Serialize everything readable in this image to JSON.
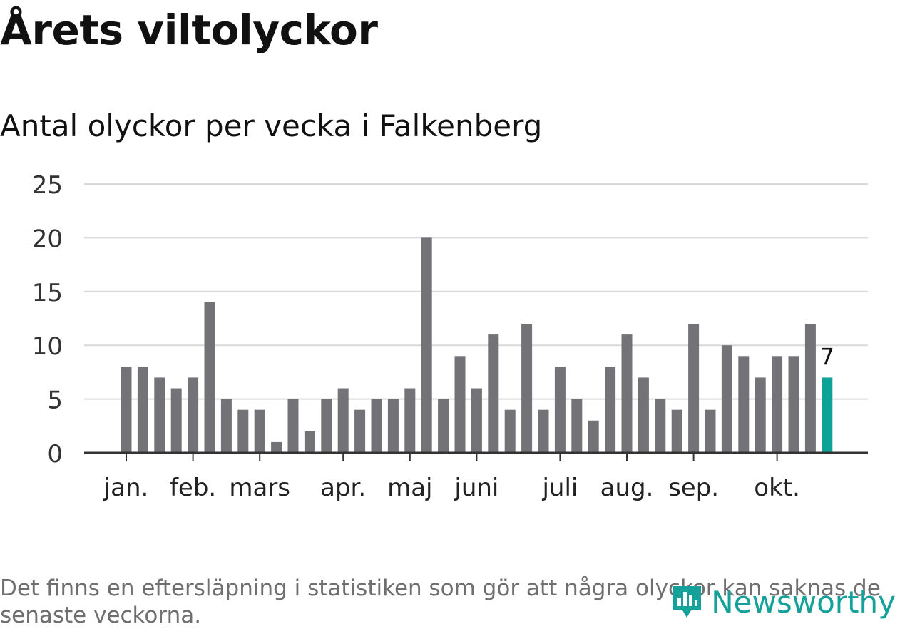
{
  "header": {
    "title": "Årets viltolyckor",
    "subtitle": "Antal olyckor per vecka i Falkenberg"
  },
  "footer": {
    "note": "Det finns en eftersläpning i statistiken som gör att några olyckor kan saknas de senaste veckorna.",
    "brand": "Newsworthy"
  },
  "colors": {
    "bar": "#737277",
    "highlight": "#0fa397",
    "grid": "#d9d9d9",
    "axis": "#333333",
    "brand": "#13a19a"
  },
  "chart_data": {
    "type": "bar",
    "title": "Antal olyckor per vecka i Falkenberg",
    "xlabel": "",
    "ylabel": "",
    "ylim": [
      0,
      25
    ],
    "yticks": [
      0,
      5,
      10,
      15,
      20,
      25
    ],
    "weeks": [
      1,
      2,
      3,
      4,
      5,
      6,
      7,
      8,
      9,
      10,
      11,
      12,
      13,
      14,
      15,
      16,
      17,
      18,
      19,
      20,
      21,
      22,
      23,
      24,
      25,
      26,
      27,
      28,
      29,
      30,
      31,
      32,
      33,
      34,
      35,
      36,
      37,
      38,
      39,
      40,
      41,
      42,
      43
    ],
    "values": [
      8,
      8,
      7,
      6,
      7,
      14,
      5,
      4,
      4,
      1,
      5,
      2,
      5,
      6,
      4,
      5,
      5,
      6,
      20,
      5,
      9,
      6,
      11,
      4,
      12,
      4,
      8,
      5,
      3,
      8,
      11,
      7,
      5,
      4,
      12,
      4,
      10,
      9,
      7,
      9,
      9,
      12,
      7
    ],
    "highlight_index": 42,
    "highlight_label": "7",
    "month_labels": [
      {
        "label": "jan.",
        "week": 1
      },
      {
        "label": "feb.",
        "week": 5
      },
      {
        "label": "mars",
        "week": 9
      },
      {
        "label": "apr.",
        "week": 14
      },
      {
        "label": "maj",
        "week": 18
      },
      {
        "label": "juni",
        "week": 22
      },
      {
        "label": "juli",
        "week": 27
      },
      {
        "label": "aug.",
        "week": 31
      },
      {
        "label": "sep.",
        "week": 35
      },
      {
        "label": "okt.",
        "week": 40
      }
    ],
    "grid": true
  }
}
